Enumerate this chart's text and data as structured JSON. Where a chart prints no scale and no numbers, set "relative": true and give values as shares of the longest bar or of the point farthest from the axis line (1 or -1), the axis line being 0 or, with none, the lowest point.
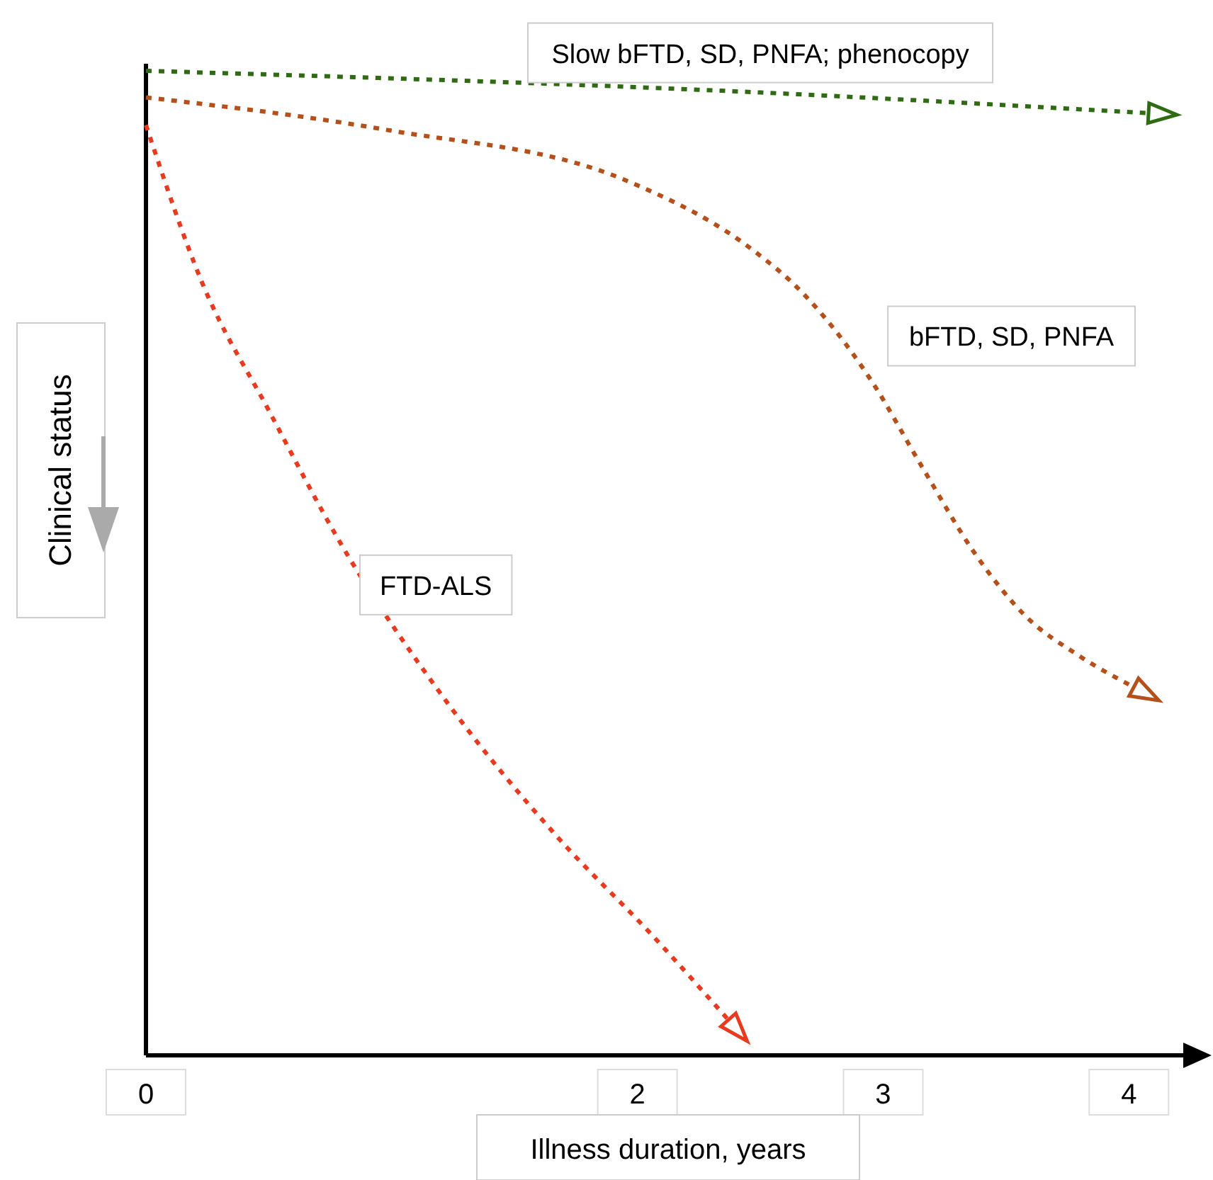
{
  "chart_data": {
    "type": "line",
    "relative": true,
    "xlabel": "Illness duration, years",
    "ylabel": "Clinical status",
    "xlim": [
      0,
      4.25
    ],
    "xticks": [
      0,
      2,
      3,
      4
    ],
    "line_style": "dotted",
    "series": [
      {
        "name": "Slow bFTD, SD, PNFA; phenocopy",
        "color": "#2e6b12",
        "x": [
          0,
          2.5,
          4.08
        ],
        "values": [
          1,
          0.978,
          0.957
        ]
      },
      {
        "name": "bFTD, SD, PNFA",
        "color": "#b5501a",
        "x": [
          0,
          0.98,
          1.96,
          2.48,
          2.65,
          2.95,
          3.16,
          3.37,
          3.58,
          3.79,
          4.02
        ],
        "values": [
          0.973,
          0.94,
          0.888,
          0.816,
          0.78,
          0.686,
          0.597,
          0.511,
          0.446,
          0.407,
          0.374
        ]
      },
      {
        "name": "FTD-ALS",
        "color": "#e83a1f",
        "x": [
          0,
          0.23,
          0.5,
          0.79,
          1.23,
          1.67,
          2.06,
          2.37
        ],
        "values": [
          0.945,
          0.784,
          0.655,
          0.521,
          0.357,
          0.223,
          0.122,
          0.036
        ]
      }
    ]
  }
}
